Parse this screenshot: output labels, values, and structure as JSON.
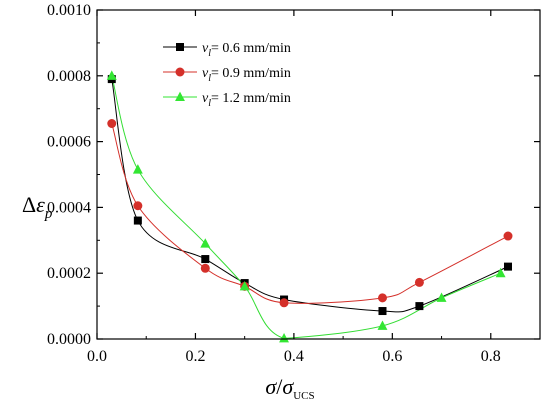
{
  "chart_data": {
    "type": "scatter",
    "title": "",
    "xlabel": "σ/σUCS",
    "ylabel": "Δεp",
    "xlim": [
      0.0,
      0.9
    ],
    "ylim": [
      0.0,
      0.001
    ],
    "xticks": [
      "0.0",
      "0.2",
      "0.4",
      "0.6",
      "0.8"
    ],
    "yticks": [
      "0.0000",
      "0.0002",
      "0.0004",
      "0.0006",
      "0.0008",
      "0.0010"
    ],
    "grid": false,
    "legend_position": "top-center",
    "series": [
      {
        "name": "vl= 0.6 mm/min",
        "marker": "square",
        "color": "#000000",
        "x": [
          0.03,
          0.083,
          0.22,
          0.3,
          0.38,
          0.58,
          0.655,
          0.835
        ],
        "y": [
          0.00079,
          0.00036,
          0.000243,
          0.00017,
          0.00012,
          8.5e-05,
          0.0001,
          0.00022
        ]
      },
      {
        "name": "vl= 0.9 mm/min",
        "marker": "circle",
        "color": "#d4302a",
        "x": [
          0.03,
          0.083,
          0.22,
          0.3,
          0.38,
          0.58,
          0.655,
          0.835
        ],
        "y": [
          0.000655,
          0.000405,
          0.000215,
          0.00016,
          0.00011,
          0.000125,
          0.000172,
          0.000313
        ]
      },
      {
        "name": "vl= 1.2 mm/min",
        "marker": "triangle",
        "color": "#33e633",
        "x": [
          0.03,
          0.083,
          0.22,
          0.3,
          0.38,
          0.58,
          0.7,
          0.82
        ],
        "y": [
          0.0008,
          0.000515,
          0.00029,
          0.00016,
          2e-06,
          4e-05,
          0.000125,
          0.0002
        ]
      }
    ]
  }
}
